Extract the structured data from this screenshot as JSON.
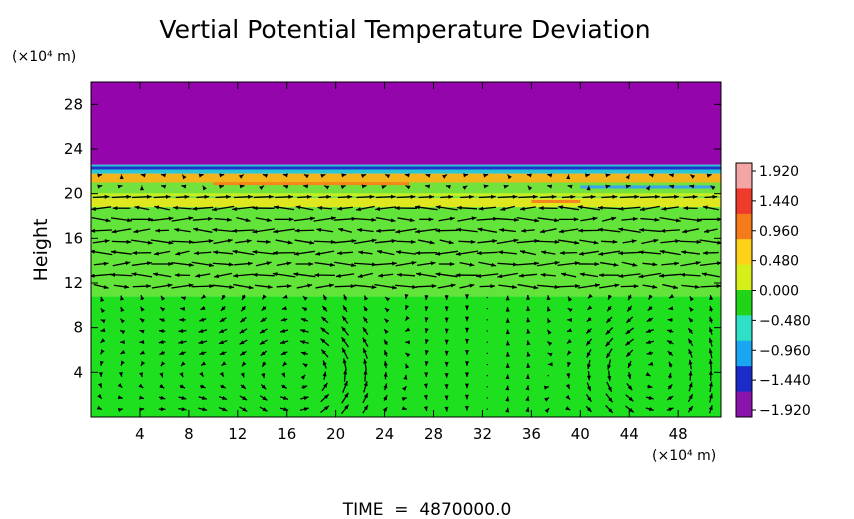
{
  "chart_data": {
    "type": "heatmap",
    "title": "Vertial Potential Temperature Deviation",
    "ylabel": "Height",
    "y_unit": "(×10⁴ m)",
    "x_unit": "(×10⁴ m)",
    "footer": "TIME  =  4870000.0",
    "xlim": [
      0,
      51.5
    ],
    "ylim": [
      0,
      30
    ],
    "x_ticks": [
      4,
      8,
      12,
      16,
      20,
      24,
      28,
      32,
      36,
      40,
      44,
      48
    ],
    "y_ticks": [
      4,
      8,
      12,
      16,
      20,
      24,
      28
    ],
    "colorbar": {
      "labels": [
        "1.920",
        "1.440",
        "0.960",
        "0.480",
        "0.000",
        "−0.480",
        "−0.960",
        "−1.440",
        "−1.920"
      ],
      "range": [
        -1.92,
        1.92
      ],
      "colors": [
        "#f4a6a6",
        "#ee3b2b",
        "#f47a1a",
        "#ffd21a",
        "#d6ef1a",
        "#22d418",
        "#2ee0c6",
        "#1aa6f0",
        "#1b2bc8",
        "#8a13ac"
      ]
    },
    "field_bands": [
      {
        "y_from": 0,
        "y_to": 10.8,
        "value": 0.1,
        "color": "#1fe01f"
      },
      {
        "y_from": 10.8,
        "y_to": 18.8,
        "value": 0.35,
        "color": "#62e43a"
      },
      {
        "y_from": 18.8,
        "y_to": 19.6,
        "value": 0.9,
        "color": "#dfe81f"
      },
      {
        "y_from": 19.6,
        "y_to": 21.0,
        "value": 0.55,
        "color": "#74e23c"
      },
      {
        "y_from": 21.0,
        "y_to": 21.8,
        "value": 1.3,
        "color": "#f2b41a"
      },
      {
        "y_from": 21.8,
        "y_to": 22.6,
        "value": -0.6,
        "color": "#29c6d8"
      },
      {
        "y_from": 22.6,
        "y_to": 30,
        "value": -1.92,
        "color": "#9406ac"
      }
    ],
    "vectors": "wind vector field overlay (arrows)"
  }
}
